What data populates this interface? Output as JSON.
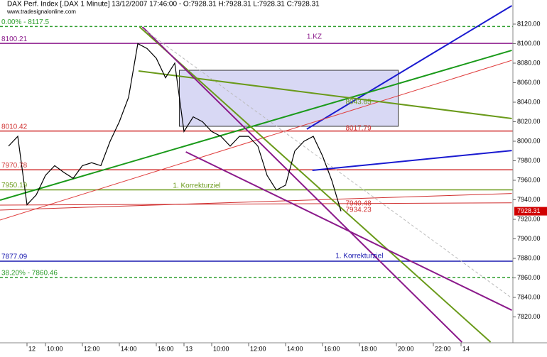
{
  "chart_data": {
    "type": "line",
    "title": "DAX Perf. Index [.DAX 1 Minute] 13/12/2007 17:46:00 - O:7928.31 H:7928.31 L:7928.31 C:7928.31",
    "subtitle": "www.tradesignalonline.com",
    "categories": [
      null,
      null,
      "12",
      null,
      "10:00",
      null,
      null,
      null,
      "12:00",
      null,
      null,
      null,
      "14:00",
      null,
      null,
      null,
      "16:00",
      null,
      null,
      "13",
      null,
      null,
      "10:00",
      null,
      null,
      null,
      "12:00",
      null,
      null,
      null,
      "14:00",
      null,
      null,
      null,
      "16:00",
      null,
      null,
      null,
      "18:00",
      null,
      null,
      null,
      "20:00",
      null,
      null,
      null,
      "22:00",
      null,
      null,
      "14",
      null,
      null,
      null,
      null,
      null
    ],
    "values": [
      7995,
      8005,
      7935,
      7945,
      7965,
      7975,
      7968,
      7962,
      7975,
      7978,
      7975,
      8000,
      8020,
      8045,
      8100,
      8095,
      8085,
      8065,
      8080,
      8010,
      8025,
      8020,
      8010,
      8005,
      7995,
      8005,
      8005,
      7995,
      7965,
      7950,
      7955,
      7990,
      8000,
      8005,
      7985,
      7960,
      7928.31,
      null,
      null,
      null,
      null,
      null,
      null,
      null,
      null,
      null,
      null,
      null,
      null,
      null,
      null,
      null,
      null,
      null,
      null
    ],
    "color": "#000000",
    "ylim": [
      7793.5,
      8144.7
    ],
    "yticks": [
      {
        "value": 7820,
        "label": "7820.00"
      },
      {
        "value": 7840,
        "label": "7840.00"
      },
      {
        "value": 7860,
        "label": "7860.00"
      },
      {
        "value": 7880,
        "label": "7880.00"
      },
      {
        "value": 7900,
        "label": "7900.00"
      },
      {
        "value": 7920,
        "label": "7920.00"
      },
      {
        "value": 7940,
        "label": "7940.00"
      },
      {
        "value": 7960,
        "label": "7960.00"
      },
      {
        "value": 7980,
        "label": "7980.00"
      },
      {
        "value": 8000,
        "label": "8000.00"
      },
      {
        "value": 8020,
        "label": "8020.00"
      },
      {
        "value": 8040,
        "label": "8040.00"
      },
      {
        "value": 8060,
        "label": "8060.00"
      },
      {
        "value": 8080,
        "label": "8080.00"
      },
      {
        "value": 8100,
        "label": "8100.00"
      },
      {
        "value": 8120,
        "label": "8120.00"
      }
    ],
    "last_price": {
      "value": 7928.31,
      "label": "7928.31",
      "color": "#d00000"
    },
    "levels": [
      {
        "value": 8117.5,
        "label": "0.00% - 8117.5",
        "color": "#2e9e2e",
        "dashed": true
      },
      {
        "value": 8100.21,
        "label": "8100.21",
        "color": "#8b1a8b",
        "dashed": false
      },
      {
        "value": 8010.42,
        "label": "8010.42",
        "color": "#d03030",
        "dashed": false
      },
      {
        "value": 7970.78,
        "label": "7970.78",
        "color": "#d03030",
        "dashed": false
      },
      {
        "value": 7950.19,
        "label": "7950.19",
        "color": "#6a9a1a",
        "dashed": false
      },
      {
        "value": 7877.09,
        "label": "7877.09",
        "color": "#1a1ab0",
        "dashed": false
      },
      {
        "value": 7860.46,
        "label": "38.20% - 7860.46",
        "color": "#2e9e2e",
        "dashed": true
      }
    ],
    "box": {
      "x": [
        18.5,
        42.2
      ],
      "y": [
        8072.7,
        8015.3
      ],
      "color": "#c8c8f0"
    },
    "trendlines": [
      {
        "x": [
          32.3,
          54.5
        ],
        "y": [
          8012.4,
          8138.9
        ],
        "color": "#1a1ad0",
        "width": 2
      },
      {
        "x": [
          32.9,
          54.5
        ],
        "y": [
          7970.2,
          7990.5
        ],
        "color": "#1a1ad0",
        "width": 2
      },
      {
        "x": [
          -0.92,
          54.5
        ],
        "y": [
          7939.6,
          8093.1
        ],
        "color": "#1a9a1a",
        "width": 2
      },
      {
        "x": [
          -0.92,
          54.5
        ],
        "y": [
          7919.3,
          8082.9
        ],
        "color": "#e04040",
        "width": 1
      },
      {
        "x": [
          -0.92,
          54.5
        ],
        "y": [
          7929.5,
          7946.5
        ],
        "color": "#d03030",
        "width": 1
      },
      {
        "x": [
          -0.92,
          54.5
        ],
        "y": [
          7934.6,
          7936.9
        ],
        "color": "#d03030",
        "width": 1
      },
      {
        "x": [
          14.08,
          54.5
        ],
        "y": [
          8072.0,
          8023.3
        ],
        "color": "#6a9a1a",
        "width": 2
      },
      {
        "x": [
          14.2,
          52.2
        ],
        "y": [
          8117.1,
          7794.2
        ],
        "color": "#6a9a1a",
        "width": 2
      },
      {
        "x": [
          14.5,
          49.1
        ],
        "y": [
          8117.1,
          7794.2
        ],
        "color": "#8b1a8b",
        "width": 2
      },
      {
        "x": [
          19.2,
          54.5
        ],
        "y": [
          7989.1,
          7826.9
        ],
        "color": "#8b1a8b",
        "width": 2
      },
      {
        "x": [
          14.5,
          54.5
        ],
        "y": [
          8115.6,
          7839.3
        ],
        "color": "#bbbbbb",
        "width": 1
      }
    ],
    "annotations": [
      {
        "text": "1.KZ",
        "x": 32.3,
        "y": 8106.9,
        "color": "#8b1a8b"
      },
      {
        "text": "1. Korrekturziel",
        "x": 17.8,
        "y": 7954.2,
        "color": "#6a9a1a"
      },
      {
        "text": "1. Korrekturziel",
        "x": 35.4,
        "y": 7882.2,
        "color": "#1a1ab0"
      },
      {
        "text": "8043.65",
        "x": 36.5,
        "y": 8040.0,
        "color": "#6a9a1a"
      },
      {
        "text": "8017.79",
        "x": 36.5,
        "y": 8013.1,
        "color": "#d03030"
      },
      {
        "text": "7940.48",
        "x": 36.5,
        "y": 7936.0,
        "color": "#d03030"
      },
      {
        "text": "7934.23",
        "x": 36.5,
        "y": 7929.5,
        "color": "#d03030"
      }
    ]
  }
}
